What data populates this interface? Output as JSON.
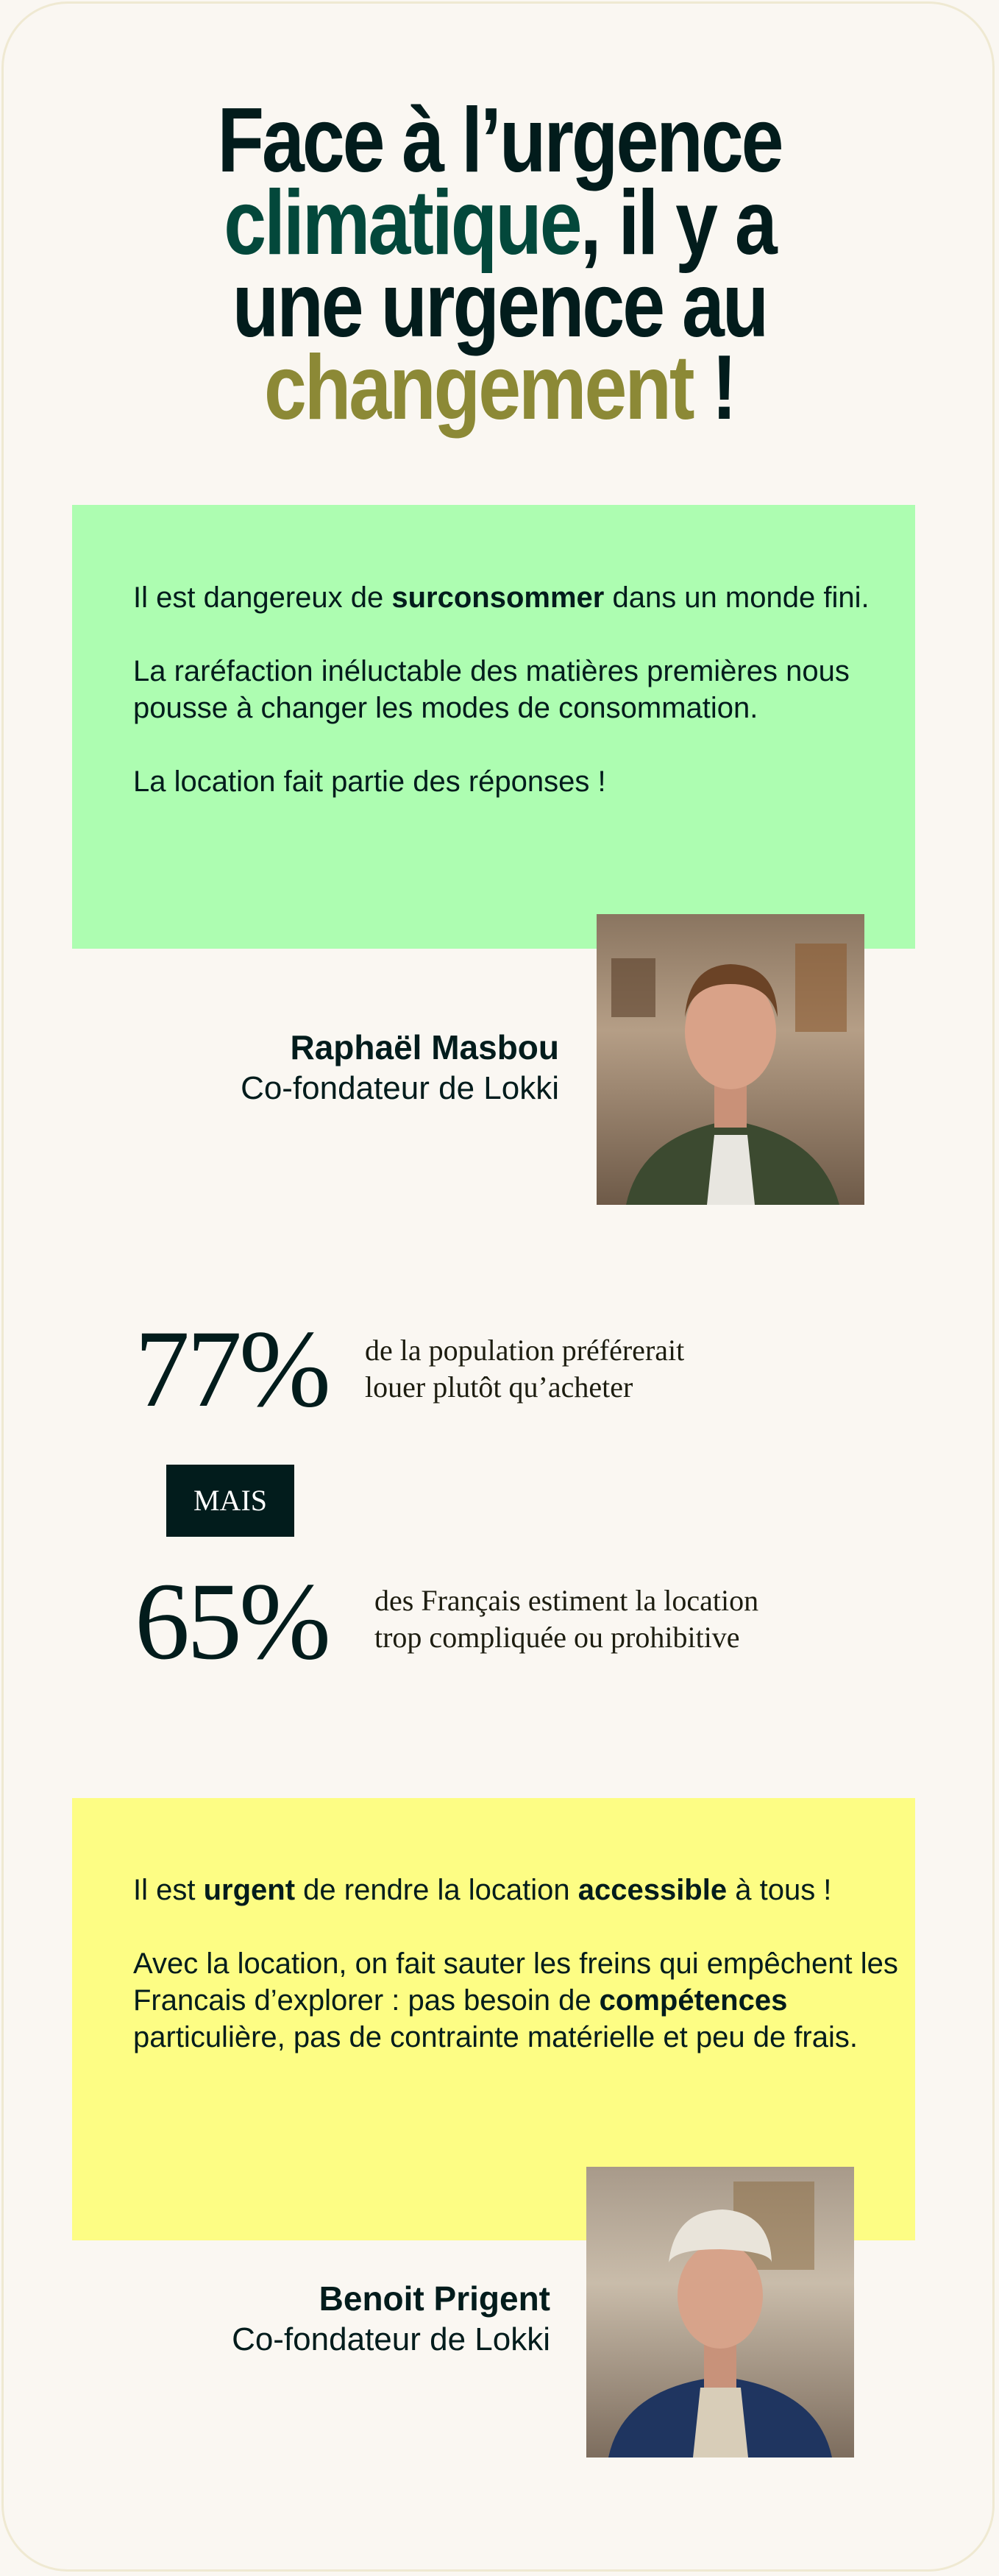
{
  "title": {
    "line1": "Face à l’urgence",
    "line2_highlight": "climatique",
    "line2_rest": ", il y a",
    "line3": "une urgence au",
    "line4_highlight": "changement",
    "line4_rest": " !"
  },
  "quote1": {
    "p1_a": "Il est dangereux de ",
    "p1_b": "surconsommer",
    "p1_c": " dans un monde fini.",
    "p2": "La raréfaction inéluctable des matières premières nous pousse à changer les modes de consommation.",
    "p3": "La location fait partie des réponses !",
    "name": "Raphaël Masbou",
    "role": "Co-fondateur de Lokki"
  },
  "stats": {
    "stat1_value": "77%",
    "stat1_line1": "de la population préférerait",
    "stat1_line2": "louer plutôt qu’acheter",
    "separator": "MAIS",
    "stat2_value": "65%",
    "stat2_line1": "des Français estiment la location",
    "stat2_line2": "trop compliquée ou prohibitive"
  },
  "quote2": {
    "p1_a": "Il est ",
    "p1_b": "urgent",
    "p1_c": " de rendre la location ",
    "p1_d": "accessible",
    "p1_e": " à tous !",
    "p2_a": "Avec la location, on fait sauter les freins qui empêchent les Francais d’explorer : pas besoin de ",
    "p2_b": "compétences",
    "p2_c": " particulière, pas de contrainte matérielle et peu de frais.",
    "name": "Benoit Prigent",
    "role": "Co-fondateur de Lokki"
  },
  "colors": {
    "text": "#021c1c",
    "green_word": "#03483b",
    "olive_word": "#8c8936",
    "green_box": "#adfdb1",
    "yellow_box": "#fdfd84",
    "background": "#faf7f2"
  }
}
